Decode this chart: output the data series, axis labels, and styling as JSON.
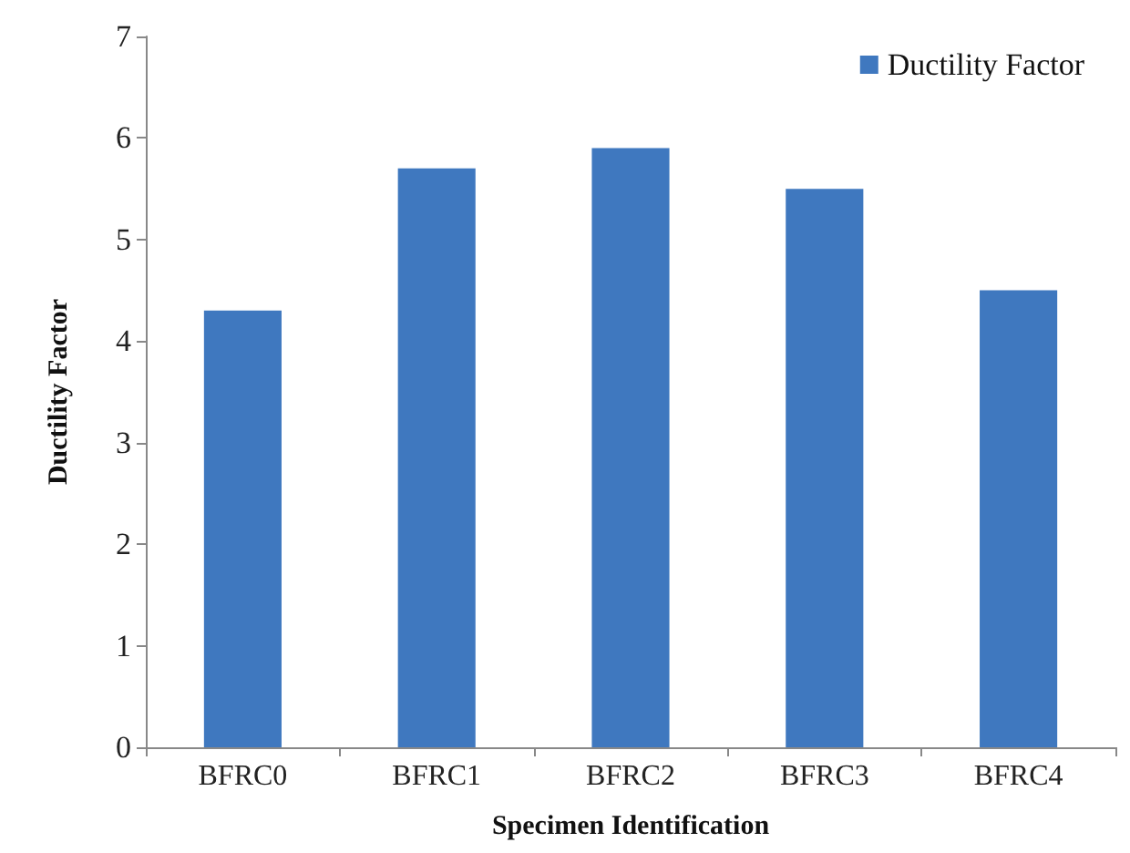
{
  "chart_data": {
    "type": "bar",
    "xlabel": "Specimen Identification",
    "ylabel": "Ductility Factor",
    "categories": [
      "BFRC0",
      "BFRC1",
      "BFRC2",
      "BFRC3",
      "BFRC4"
    ],
    "series": [
      {
        "name": "Ductility Factor",
        "color": "#3f78bf",
        "values": [
          4.3,
          5.7,
          5.9,
          5.5,
          4.5
        ]
      }
    ],
    "ylim": [
      0,
      7
    ],
    "yticks": [
      0,
      1,
      2,
      3,
      4,
      5,
      6,
      7
    ],
    "grid": false,
    "legend": "top right"
  }
}
